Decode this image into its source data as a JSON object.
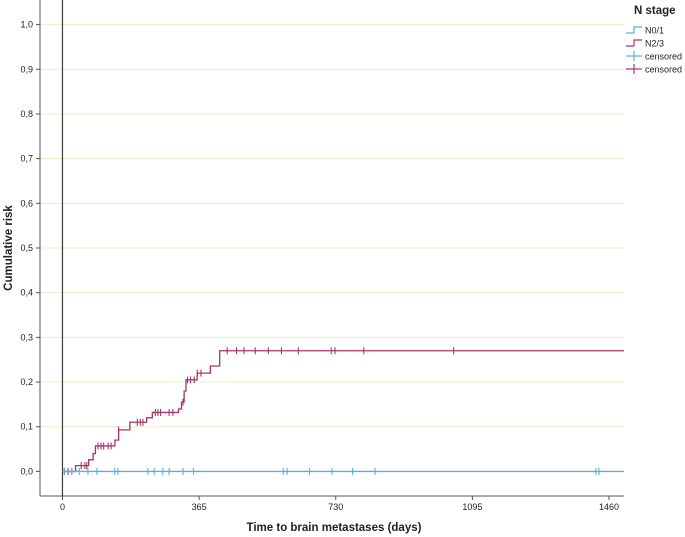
{
  "chart_data": {
    "type": "line",
    "step": true,
    "xlabel": "Time to brain metastases (days)",
    "ylabel": "Cumulative risk",
    "xlim": [
      -60,
      1500
    ],
    "ylim": [
      -0.055,
      1.055
    ],
    "xticks": [
      0,
      365,
      730,
      1095,
      1460
    ],
    "xtick_labels": [
      "0",
      "365",
      "730",
      "1095",
      "1460"
    ],
    "yticks": [
      0,
      0.1,
      0.2,
      0.3,
      0.4,
      0.5,
      0.6,
      0.7,
      0.8,
      0.9,
      1.0
    ],
    "ytick_labels": [
      "0,0",
      "0,1",
      "0,2",
      "0,3",
      "0,4",
      "0,5",
      "0,6",
      "0,7",
      "0,8",
      "0,9",
      "1,0"
    ],
    "grid": "horizontal",
    "reference_line_x": 0,
    "legend": {
      "title": "N stage",
      "position": "right",
      "entries": [
        {
          "label": "N0/1",
          "color": "#5aaee6",
          "kind": "line"
        },
        {
          "label": "N2/3",
          "color": "#a8356d",
          "kind": "line"
        },
        {
          "label": "censored",
          "color": "#5aaee6",
          "kind": "censor"
        },
        {
          "label": "censored",
          "color": "#a8356d",
          "kind": "censor"
        }
      ]
    },
    "series": [
      {
        "name": "N0/1",
        "color": "#5aaee6",
        "steps": [
          [
            0,
            0.0
          ],
          [
            1500,
            0.0
          ]
        ],
        "censored_x": [
          5,
          25,
          45,
          68,
          92,
          140,
          148,
          228,
          245,
          268,
          285,
          322,
          350,
          590,
          600,
          660,
          720,
          775,
          835,
          1425,
          1433
        ]
      },
      {
        "name": "N2/3",
        "color": "#a8356d",
        "steps": [
          [
            0,
            0.0
          ],
          [
            35,
            0.013
          ],
          [
            70,
            0.026
          ],
          [
            82,
            0.04
          ],
          [
            88,
            0.057
          ],
          [
            140,
            0.07
          ],
          [
            150,
            0.093
          ],
          [
            180,
            0.11
          ],
          [
            225,
            0.12
          ],
          [
            240,
            0.132
          ],
          [
            310,
            0.14
          ],
          [
            318,
            0.155
          ],
          [
            325,
            0.18
          ],
          [
            330,
            0.205
          ],
          [
            360,
            0.22
          ],
          [
            395,
            0.236
          ],
          [
            420,
            0.27
          ],
          [
            1500,
            0.27
          ]
        ],
        "censored_x": [
          5,
          15,
          25,
          50,
          60,
          65,
          95,
          103,
          110,
          122,
          130,
          150,
          200,
          208,
          215,
          248,
          255,
          262,
          285,
          295,
          322,
          334,
          342,
          352,
          360,
          370,
          440,
          465,
          485,
          515,
          550,
          585,
          630,
          718,
          728,
          805,
          1045
        ]
      }
    ]
  }
}
